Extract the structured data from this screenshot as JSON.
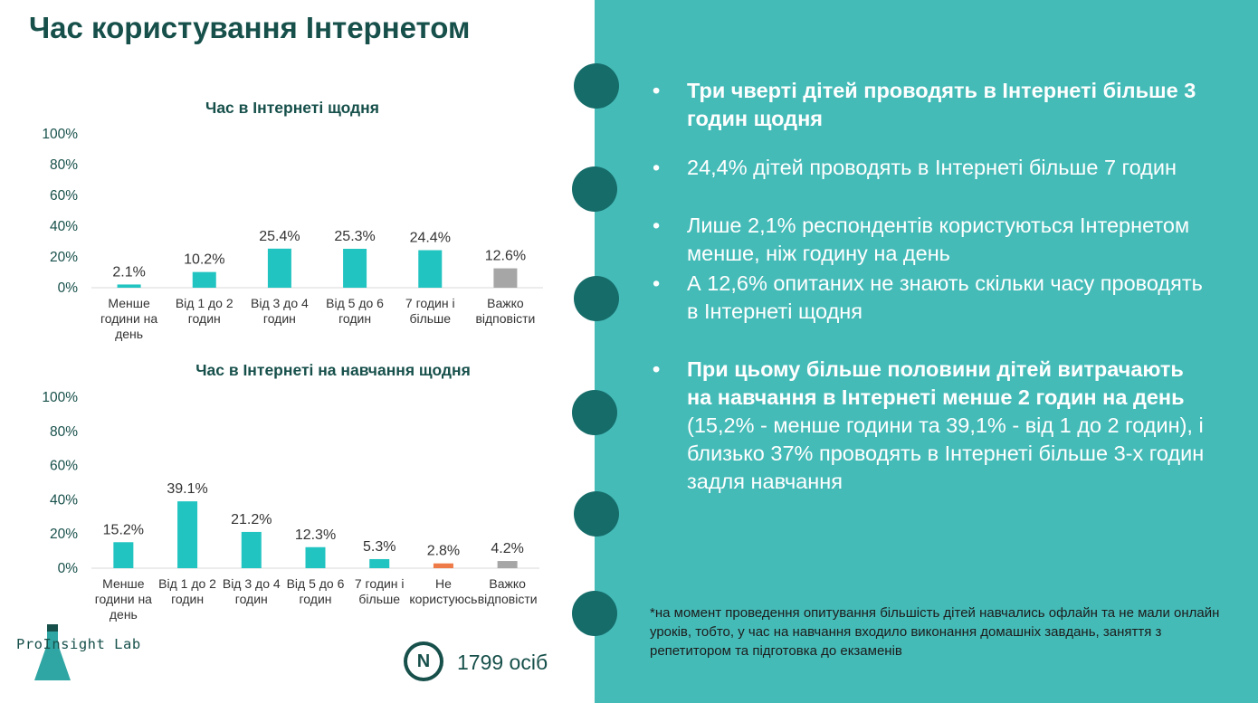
{
  "page_title": "Час користування Інтернетом",
  "chart_data": [
    {
      "type": "bar",
      "title": "Час в Інтернеті щодня",
      "yticks": [
        "100%",
        "80%",
        "60%",
        "40%",
        "20%",
        "0%"
      ],
      "ylim": [
        0,
        100
      ],
      "categories": [
        [
          "Менше",
          "години на",
          "день"
        ],
        [
          "Від 1 до 2",
          "годин"
        ],
        [
          "Від 3 до 4",
          "годин"
        ],
        [
          "Від 5 до 6",
          "годин"
        ],
        [
          "7 годин і",
          "більше"
        ],
        [
          "Важко",
          "відповісти"
        ]
      ],
      "values": [
        2.1,
        10.2,
        25.4,
        25.3,
        24.4,
        12.6
      ],
      "value_labels": [
        "2.1%",
        "10.2%",
        "25.4%",
        "25.3%",
        "24.4%",
        "12.6%"
      ],
      "bar_colors": [
        "#21c4c1",
        "#21c4c1",
        "#21c4c1",
        "#21c4c1",
        "#21c4c1",
        "#a6a6a6"
      ]
    },
    {
      "type": "bar",
      "title": "Час в Інтернеті на навчання щодня",
      "yticks": [
        "100%",
        "80%",
        "60%",
        "40%",
        "20%",
        "0%"
      ],
      "ylim": [
        0,
        100
      ],
      "categories": [
        [
          "Менше",
          "години на",
          "день"
        ],
        [
          "Від 1 до 2",
          "годин"
        ],
        [
          "Від 3 до 4",
          "годин"
        ],
        [
          "Від 5 до 6",
          "годин"
        ],
        [
          "7 годин і",
          "більше"
        ],
        [
          "Не",
          "користуюсь"
        ],
        [
          "Важко",
          "відповісти"
        ]
      ],
      "values": [
        15.2,
        39.1,
        21.2,
        12.3,
        5.3,
        2.8,
        4.2
      ],
      "value_labels": [
        "15.2%",
        "39.1%",
        "21.2%",
        "12.3%",
        "5.3%",
        "2.8%",
        "4.2%"
      ],
      "bar_colors": [
        "#21c4c1",
        "#21c4c1",
        "#21c4c1",
        "#21c4c1",
        "#21c4c1",
        "#ee7a47",
        "#a6a6a6"
      ]
    }
  ],
  "bullets": {
    "b1": "Три чверті дітей проводять в Інтернеті більше 3 годин щодня",
    "b2": "24,4% дітей проводять в Інтернеті більше 7 годин",
    "b3": "Лише 2,1% респондентів користуються Інтернетом менше, ніж годину на день",
    "b4": "А 12,6% опитаних не знають скільки часу проводять в Інтернеті щодня",
    "b5_bold": "При цьому більше половини дітей витрачають на навчання в Інтернеті менше 2 годин на день",
    "b5_rest": " (15,2% - менше години та 39,1% - від 1 до 2 годин), і близько 37% проводять в Інтернеті більше 3-х годин задля навчання"
  },
  "bullet_symbol": "•",
  "footnote": "*на момент проведення опитування більшість дітей навчались офлайн та не мали онлайн уроків, тобто, у час на навчання входило виконання домашніх завдань, заняття з репетитором та підготовка до екзаменів",
  "logo_text": "ProInsight Lab",
  "sample_badge": "N",
  "sample_size": "1799 осіб",
  "colors": {
    "accent": "#45bbb8",
    "dark": "#17504b",
    "circle": "#156c69"
  }
}
